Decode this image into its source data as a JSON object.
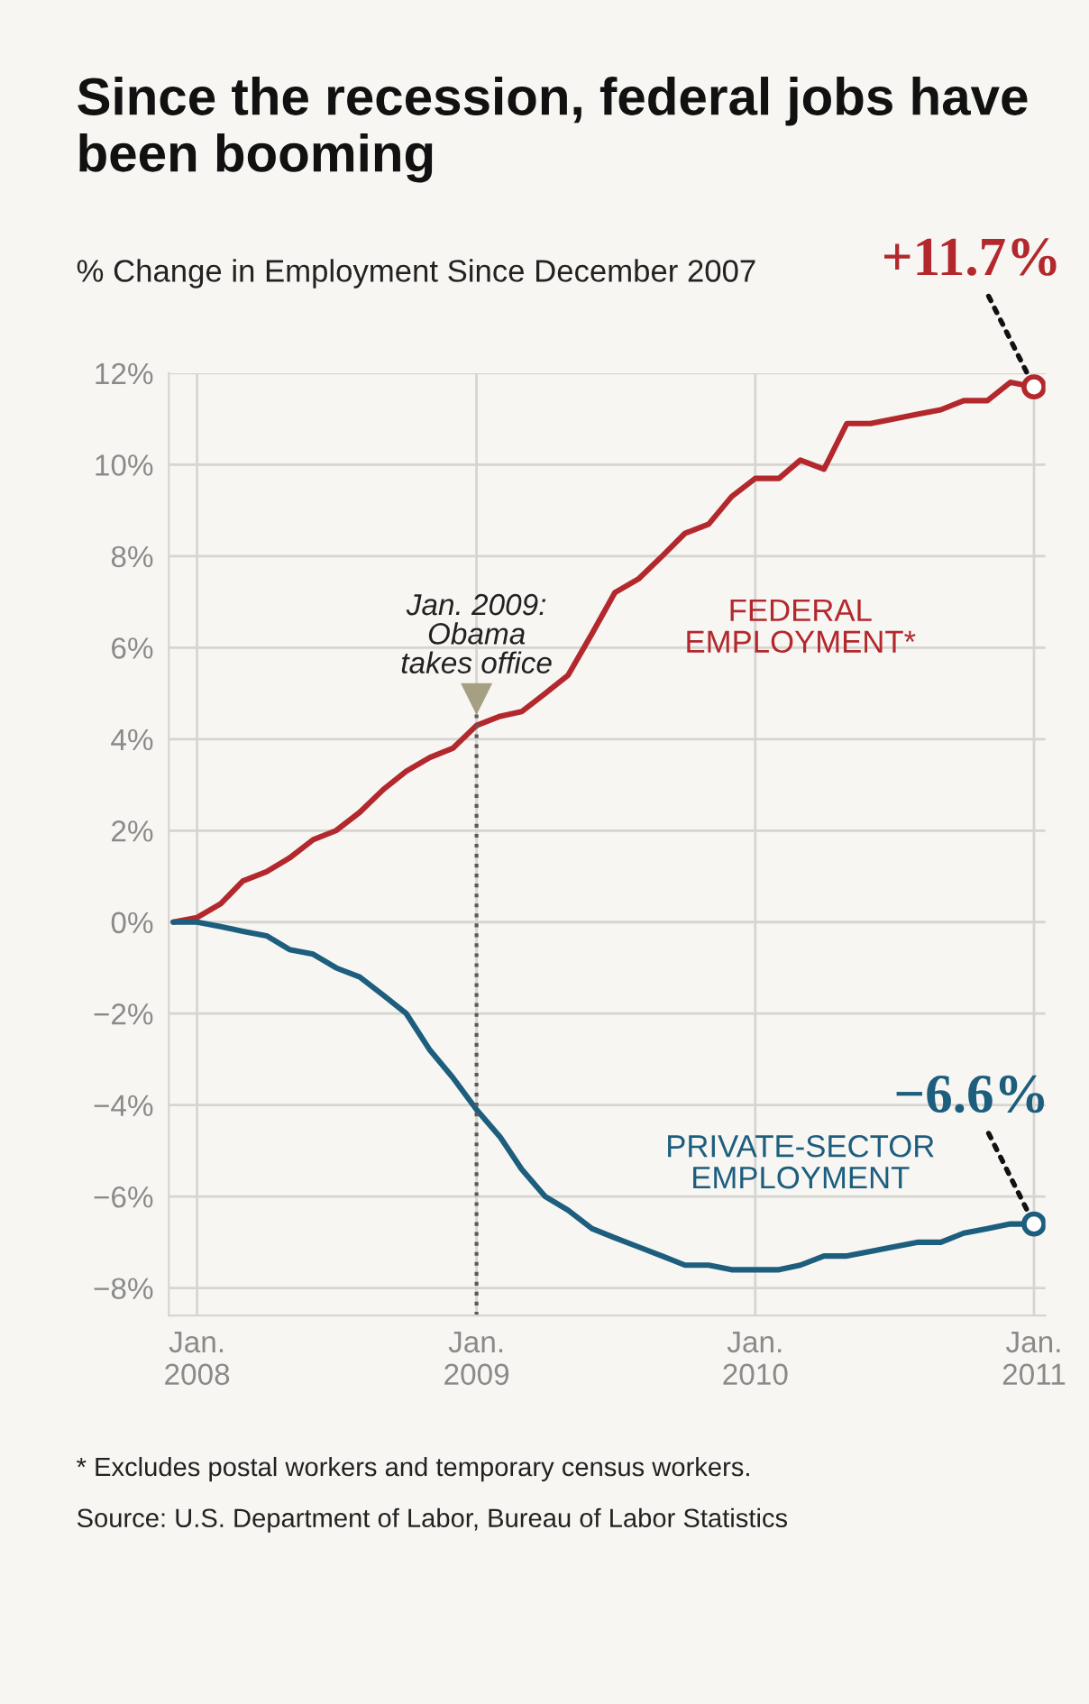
{
  "chart_data": {
    "type": "line",
    "title": "Since the recession, federal jobs have been booming",
    "subtitle": "% Change in Employment Since December 2007",
    "x": [
      "2007-12",
      "2008-01",
      "2008-02",
      "2008-03",
      "2008-04",
      "2008-05",
      "2008-06",
      "2008-07",
      "2008-08",
      "2008-09",
      "2008-10",
      "2008-11",
      "2008-12",
      "2009-01",
      "2009-02",
      "2009-03",
      "2009-04",
      "2009-05",
      "2009-06",
      "2009-07",
      "2009-08",
      "2009-09",
      "2009-10",
      "2009-11",
      "2009-12",
      "2010-01",
      "2010-02",
      "2010-03",
      "2010-04",
      "2010-05",
      "2010-06",
      "2010-07",
      "2010-08",
      "2010-09",
      "2010-10",
      "2010-11",
      "2010-12",
      "2011-01"
    ],
    "series": [
      {
        "name": "FEDERAL EMPLOYMENT*",
        "color": "#b3282d",
        "values": [
          0,
          0.1,
          0.4,
          0.9,
          1.1,
          1.4,
          1.8,
          2.0,
          2.4,
          2.9,
          3.3,
          3.6,
          3.8,
          4.3,
          4.5,
          4.6,
          5.0,
          5.4,
          6.3,
          7.2,
          7.5,
          8.0,
          8.5,
          8.7,
          9.3,
          9.7,
          9.7,
          10.1,
          9.9,
          10.9,
          10.9,
          11.0,
          11.1,
          11.2,
          11.4,
          11.4,
          11.8,
          11.7
        ]
      },
      {
        "name": "PRIVATE-SECTOR EMPLOYMENT",
        "color": "#1d5e7e",
        "values": [
          0,
          0.0,
          -0.1,
          -0.2,
          -0.3,
          -0.6,
          -0.7,
          -1.0,
          -1.2,
          -1.6,
          -2.0,
          -2.8,
          -3.4,
          -4.1,
          -4.7,
          -5.4,
          -6.0,
          -6.3,
          -6.7,
          -6.9,
          -7.1,
          -7.3,
          -7.5,
          -7.5,
          -7.6,
          -7.6,
          -7.6,
          -7.5,
          -7.3,
          -7.3,
          -7.2,
          -7.1,
          -7.0,
          -7.0,
          -6.8,
          -6.7,
          -6.6,
          -6.6
        ]
      }
    ],
    "xlim": [
      "2007-11-25",
      "2011-01-16"
    ],
    "xticks": [
      {
        "value": "2008-01",
        "label": "Jan.\n2008"
      },
      {
        "value": "2009-01",
        "label": "Jan.\n2009"
      },
      {
        "value": "2010-01",
        "label": "Jan.\n2010"
      },
      {
        "value": "2011-01",
        "label": "Jan.\n2011"
      }
    ],
    "ylim": [
      -8.6,
      12
    ],
    "yticks": [
      {
        "value": -8,
        "label": "−8%"
      },
      {
        "value": -6,
        "label": "−6%"
      },
      {
        "value": -4,
        "label": "−4%"
      },
      {
        "value": -2,
        "label": "−2%"
      },
      {
        "value": 0,
        "label": "0%"
      },
      {
        "value": 2,
        "label": "2%"
      },
      {
        "value": 4,
        "label": "4%"
      },
      {
        "value": 6,
        "label": "6%"
      },
      {
        "value": 8,
        "label": "8%"
      },
      {
        "value": 10,
        "label": "10%"
      },
      {
        "value": 12,
        "label": "12%"
      }
    ],
    "grid": true,
    "legend": false,
    "ref_lines": [
      {
        "axis": "x",
        "value": "2009-01",
        "label": "Jan. 2009:\nObama\ntakes office",
        "color": "#5a5a5a",
        "line_style": "dotted"
      }
    ],
    "annotations": [
      {
        "text": "+11.7%",
        "x": "2011-01",
        "y": 11.7
      },
      {
        "text": "−6.6%",
        "x": "2011-01",
        "y": -6.6
      },
      "* Excludes postal workers and temporary census workers.",
      "Source: U.S. Department of Labor, Bureau of Labor Statistics"
    ]
  }
}
